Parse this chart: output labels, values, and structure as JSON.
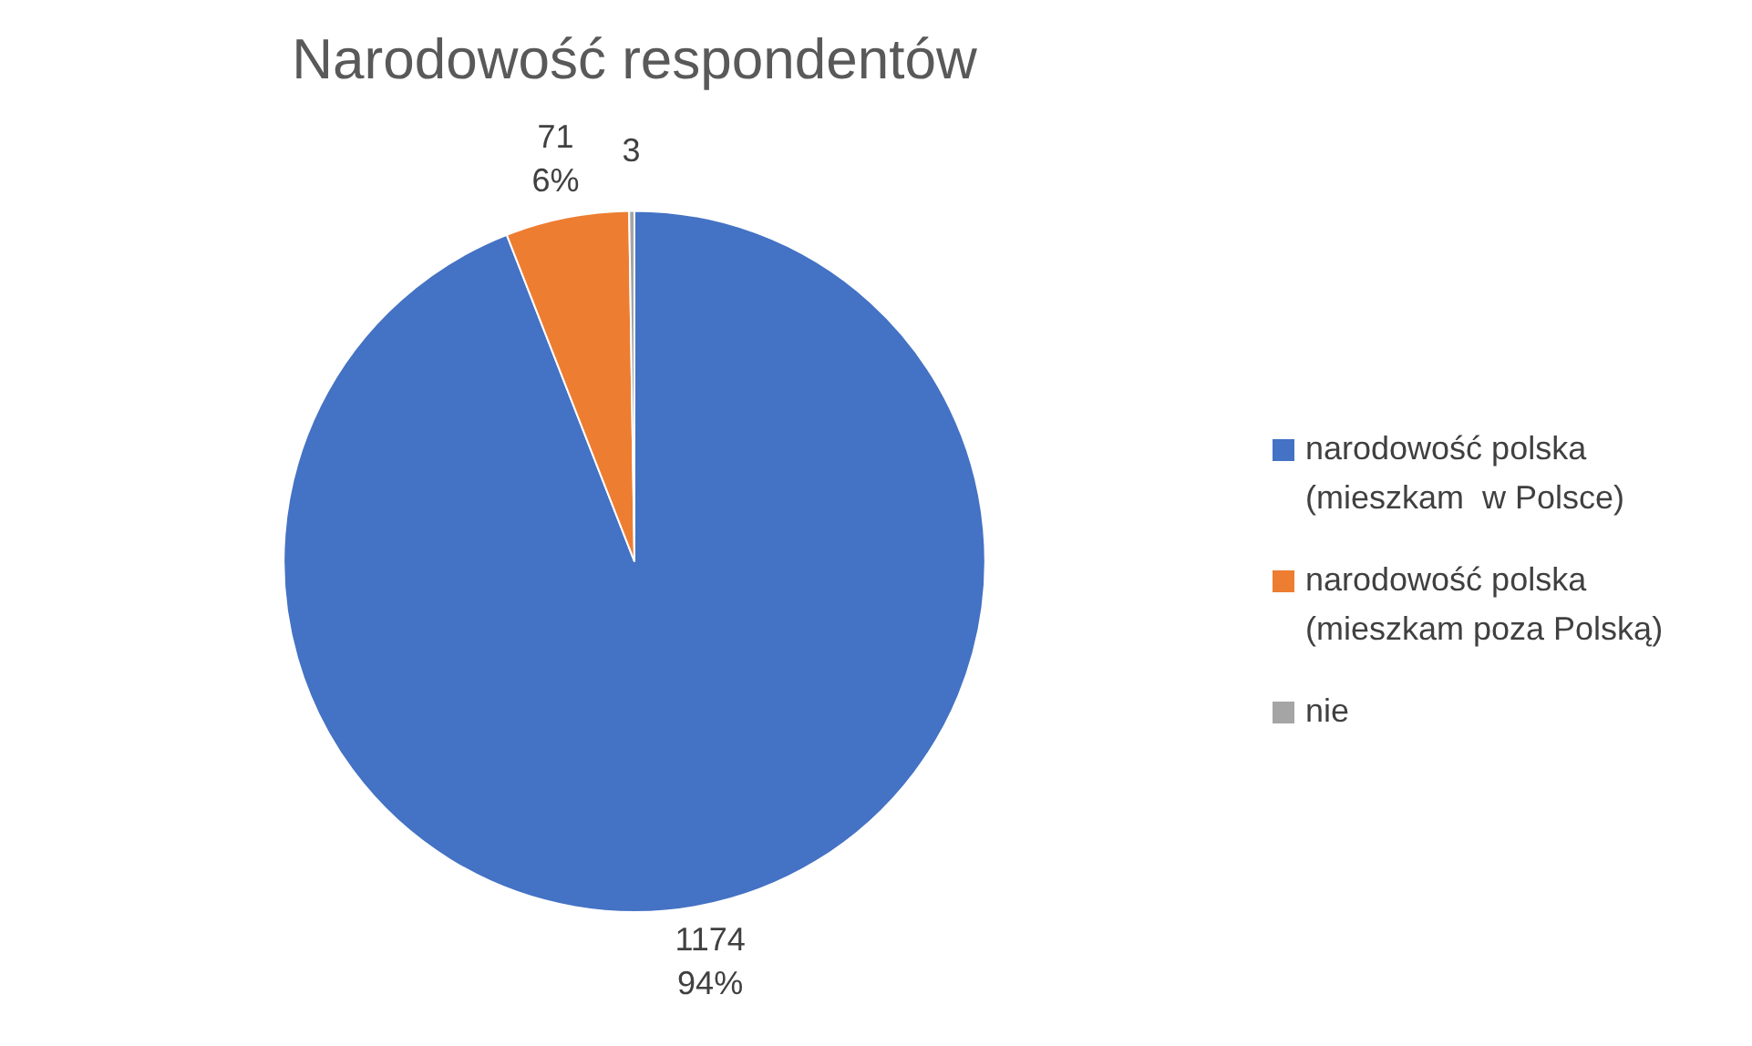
{
  "chart_data": {
    "type": "pie",
    "title": "Narodowość respondentów",
    "categories": [
      "narodowość polska (mieszkam  w Polsce)",
      "narodowość polska (mieszkam poza Polską)",
      "nie"
    ],
    "values": [
      1174,
      71,
      3
    ],
    "colors": [
      "#4472c4",
      "#ed7d31",
      "#a5a5a5"
    ],
    "value_labels": [
      "1174\n94%",
      "71\n6%",
      "3"
    ],
    "legend": "right"
  }
}
